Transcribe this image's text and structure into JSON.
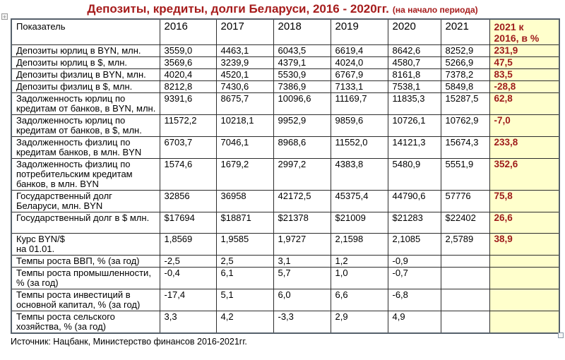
{
  "title": {
    "main": "Депозиты, кредиты, долги Беларуси, 2016 - 2020гг.",
    "note": "(на начало периода)"
  },
  "table": {
    "columns": [
      "Показатель",
      "2016",
      "2017",
      "2018",
      "2019",
      "2020",
      "2021",
      "2021 к\n2016, в %"
    ],
    "rows": [
      {
        "label": "Депозиты юрлиц в BYN, млн.",
        "values": [
          "3559,0",
          "4463,1",
          "6043,5",
          "6619,4",
          "8642,6",
          "8252,9"
        ],
        "change": "231,9"
      },
      {
        "label": "Депозиты юрлиц в $, млн.",
        "values": [
          "3569,6",
          "3239,9",
          "4379,1",
          "4024,0",
          "4580,7",
          "5266,9"
        ],
        "change": "47,5"
      },
      {
        "label": "Депозиты физлиц в BYN, млн.",
        "values": [
          "4020,4",
          "4520,1",
          "5530,9",
          "6767,9",
          "8161,8",
          "7378,2"
        ],
        "change": "83,5"
      },
      {
        "label": "Депозиты физлиц в $, млн.",
        "values": [
          "8212,8",
          "7430,6",
          "7386,9",
          "7133,1",
          "7538,1",
          "5849,8"
        ],
        "change": "-28,8"
      },
      {
        "label": "Задолженность юрлиц по кредитам от банков, в BYN, млн.",
        "values": [
          "9391,6",
          "8675,7",
          "10096,6",
          "11169,7",
          "11835,3",
          "15287,5"
        ],
        "change": "62,8"
      },
      {
        "label": "Задолженность юрлиц по кредитам от банков, в $, млн.",
        "values": [
          "11572,2",
          "10218,1",
          "9952,9",
          "9859,6",
          "10726,1",
          "10762,9"
        ],
        "change": "-7,0"
      },
      {
        "label": "Задолженность физлиц по кредитам банков, в млн. BYN",
        "values": [
          "6703,7",
          "7046,1",
          "8968,6",
          "11552,0",
          "14121,3",
          "15674,3"
        ],
        "change": "233,8"
      },
      {
        "label": "Задолженность физлиц по потребительским кредитам банков, в млн. BYN",
        "values": [
          "1574,6",
          "1679,2",
          "2997,2",
          "4383,8",
          "5480,9",
          "5551,9"
        ],
        "change": "352,6"
      },
      {
        "label": "Государственный долг Беларуси, млн. BYN",
        "values": [
          "32856",
          "36958",
          "42172,5",
          "45375,4",
          "44790,6",
          "57776"
        ],
        "change": "75,8"
      },
      {
        "label": "Государственный долг в $ млн.",
        "values": [
          "$17694",
          "$18871",
          "$21378",
          "$21009",
          "$21283",
          "$22402"
        ],
        "change": "26,6"
      },
      {
        "label": "Курс BYN/$\nна 01.01.",
        "values": [
          "1,8569",
          "1,9585",
          "1,9727",
          "2,1598",
          "2,1085",
          "2,5789"
        ],
        "change": "38,9"
      },
      {
        "label": "Темпы роста ВВП, % (за год)",
        "values": [
          "-2,5",
          "2,5",
          "3,1",
          "1,2",
          "-0,9",
          ""
        ],
        "change": ""
      },
      {
        "label": "Темпы роста промышленности, % (за год)",
        "values": [
          "-0,4",
          "6,1",
          "5,7",
          "1,0",
          "-0,7",
          ""
        ],
        "change": ""
      },
      {
        "label": "Темпы роста инвестиций в основной капитал, % (за год)",
        "values": [
          "-17,4",
          "5,1",
          "6,0",
          "6,6",
          "-6,8",
          ""
        ],
        "change": ""
      },
      {
        "label": "Темпы роста сельского хозяйства, % (за год)",
        "values": [
          "3,3",
          "4,2",
          "-3,3",
          "2,9",
          "4,9",
          ""
        ],
        "change": ""
      }
    ]
  },
  "footer": {
    "source": "Источник: Нацбанк, Министерство финансов 2016-2021гг."
  },
  "icons": {
    "table_move_handle_glyph": "+",
    "table_resize_handle": "small-square"
  },
  "colors": {
    "accent_red": "#a61c1c",
    "change_column_red": "#9e1b1b",
    "highlight_yellow": "#ffffcc",
    "border_dark": "#2d2d2d"
  }
}
